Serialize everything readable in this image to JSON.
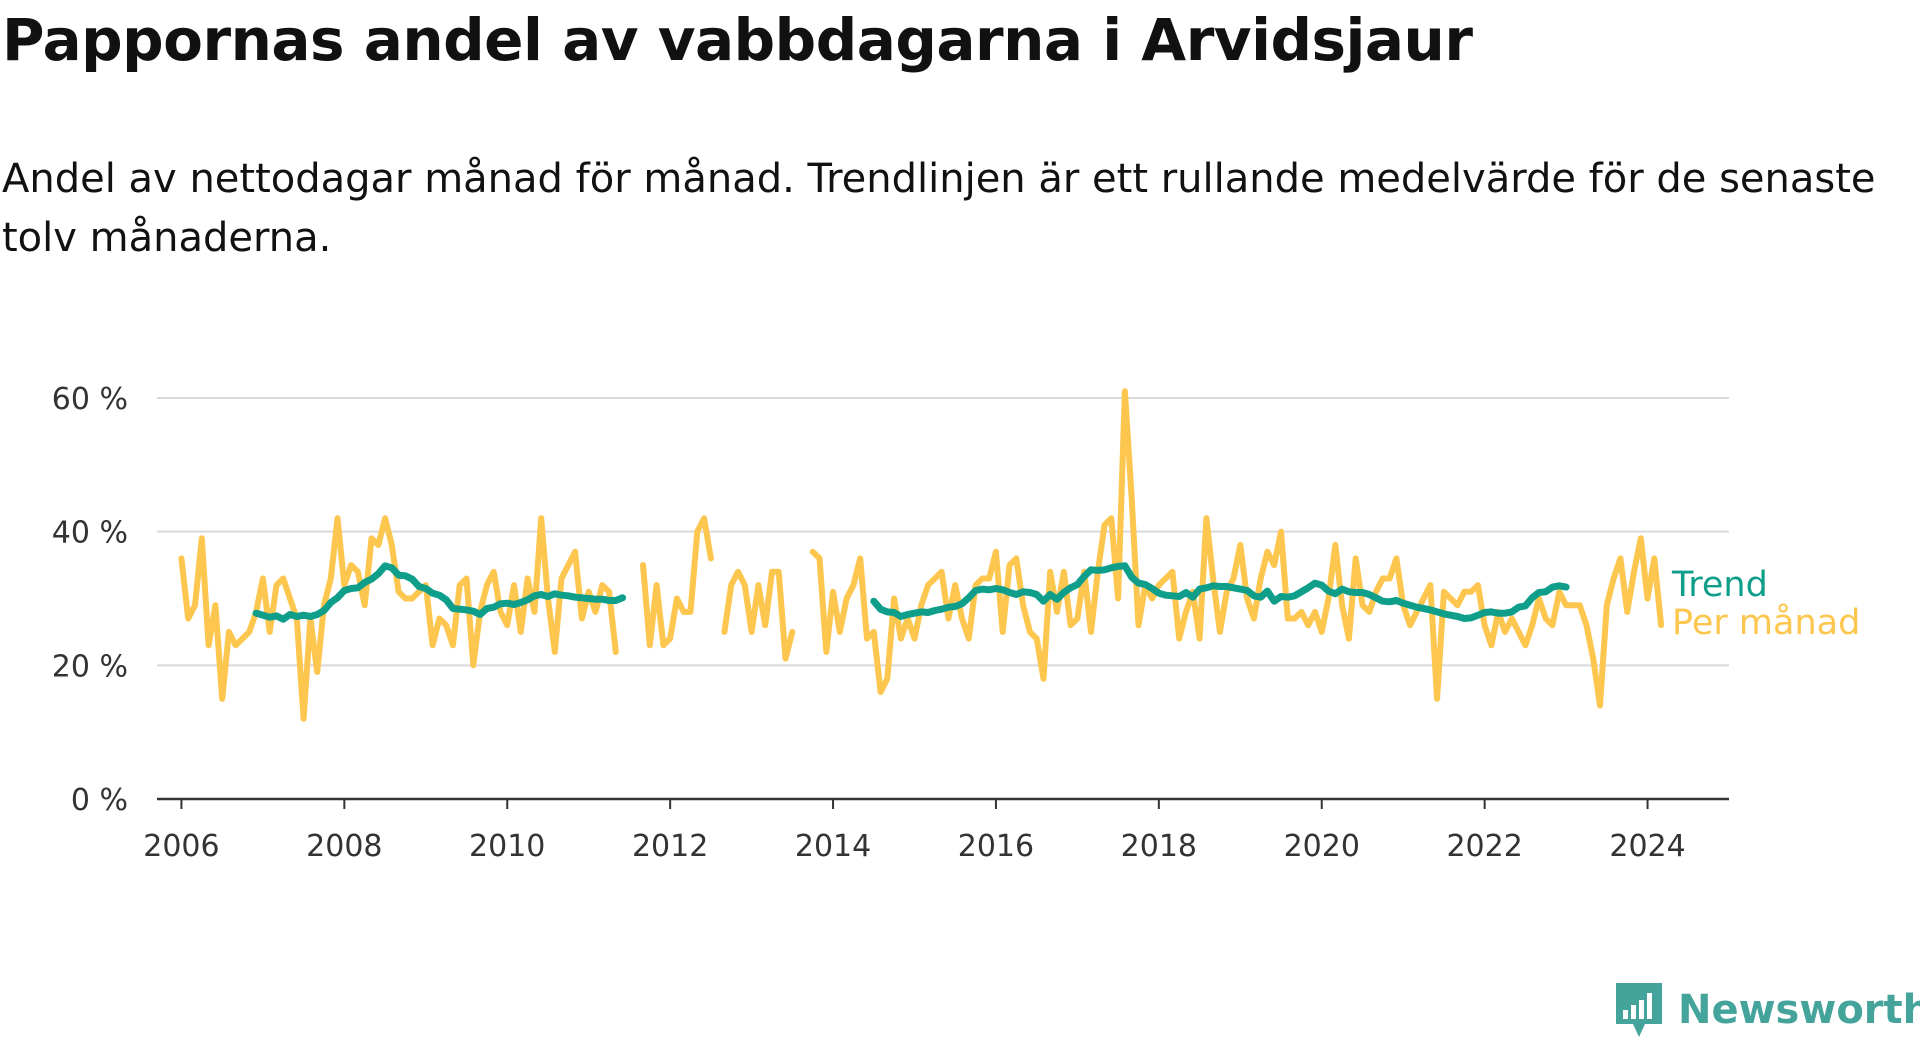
{
  "title": "Pappornas andel av vabbdagarna i Arvidsjaur",
  "subtitle": "Andel av nettodagar månad för månad. Trendlinjen är ett rullande medelvärde för de senaste tolv månaderna.",
  "brand": {
    "name": "Newsworthy",
    "icon": "newsworthy-logo-icon"
  },
  "colors": {
    "trend": "#0e9e8a",
    "monthly": "#fdc64f",
    "grid": "#d9d9d9",
    "axis": "#333333"
  },
  "chart_data": {
    "type": "line",
    "title": "Pappornas andel av vabbdagarna i Arvidsjaur",
    "xlabel": "",
    "ylabel": "",
    "xlim": [
      2005.7,
      2025.0
    ],
    "ylim": [
      0,
      60
    ],
    "x_ticks": [
      2006,
      2008,
      2010,
      2012,
      2014,
      2016,
      2018,
      2020,
      2022,
      2024
    ],
    "x_tick_labels": [
      "2006",
      "2008",
      "2010",
      "2012",
      "2014",
      "2016",
      "2018",
      "2020",
      "2022",
      "2024"
    ],
    "y_ticks": [
      0,
      20,
      40,
      60
    ],
    "y_tick_labels": [
      "0 %",
      "20 %",
      "40 %",
      "60 %"
    ],
    "grid": true,
    "legend": "direct labels at line ends",
    "series": [
      {
        "name": "Per månad",
        "segments": [
          {
            "start": "2006-01",
            "values": [
              36,
              27,
              29,
              39,
              23,
              29,
              15,
              25,
              23,
              24,
              25,
              28,
              33,
              25,
              32,
              33,
              30,
              27,
              12,
              27,
              19,
              29,
              33,
              42,
              32,
              35,
              34,
              29,
              39,
              38,
              42,
              38,
              31,
              30,
              30,
              31,
              32,
              23,
              27,
              26,
              23,
              32,
              33,
              20,
              28,
              32,
              34,
              28,
              26,
              32,
              25,
              33,
              28,
              42,
              30,
              22,
              33,
              35,
              37,
              27,
              31,
              28,
              32,
              31,
              22
            ]
          },
          {
            "start": "2011-09",
            "values": [
              35,
              23,
              32,
              23,
              24,
              30,
              28,
              28,
              40,
              42,
              36
            ]
          },
          {
            "start": "2012-09",
            "values": [
              25,
              32,
              34,
              32,
              25,
              32,
              26,
              34,
              34,
              21,
              25
            ]
          },
          {
            "start": "2013-10",
            "values": [
              37,
              36,
              22,
              31,
              25,
              30,
              32,
              36,
              24,
              25,
              16,
              18,
              30,
              24,
              27,
              24,
              29,
              32,
              33,
              34,
              27,
              32,
              27,
              24,
              32,
              33,
              33,
              37,
              25,
              35,
              36,
              29,
              25,
              24,
              18,
              34,
              28,
              34,
              26,
              27,
              34,
              25,
              34,
              41,
              42,
              30,
              61,
              45,
              26,
              32,
              30,
              32,
              33,
              34,
              24,
              28,
              31,
              24,
              42,
              33,
              25,
              31,
              33,
              38,
              30,
              27,
              33,
              37,
              35,
              40,
              27,
              27,
              28,
              26,
              28,
              25,
              30,
              38,
              29,
              24,
              36,
              29,
              28,
              31,
              33,
              33,
              36,
              29,
              26,
              28,
              30,
              32,
              15,
              31,
              30,
              29,
              31,
              31,
              32,
              26,
              23,
              28,
              25,
              27,
              25,
              23,
              26,
              30,
              27,
              26,
              31,
              29,
              29,
              29,
              26,
              21,
              14,
              29,
              33,
              36,
              28,
              34,
              39,
              30,
              36,
              26
            ]
          }
        ]
      },
      {
        "name": "Trend",
        "segments": [
          {
            "start": "2006-12",
            "values": [
              27.8,
              27.5,
              27.2,
              27.4,
              26.9,
              27.6,
              27.3,
              27.5,
              27.3,
              27.6,
              28.2,
              29.4,
              30.1,
              31.2,
              31.5,
              31.6,
              32.4,
              32.9,
              33.7,
              34.9,
              34.6,
              33.5,
              33.4,
              32.9,
              31.8,
              31.5,
              30.8,
              30.5,
              29.8,
              28.5,
              28.4,
              28.3,
              28.1,
              27.6,
              28.5,
              28.7,
              29.2,
              29.3,
              29.1,
              29.4,
              29.8,
              30.4,
              30.6,
              30.3,
              30.7,
              30.5,
              30.4,
              30.2,
              30.1,
              30.0,
              29.9,
              29.9,
              29.7,
              29.7,
              30.1
            ]
          },
          {
            "start": "2014-07",
            "values": [
              29.6,
              28.4,
              28.0,
              27.9,
              27.3,
              27.6,
              27.8,
              28.0,
              27.9,
              28.2,
              28.4,
              28.7,
              28.8,
              29.2,
              30.1,
              31.2,
              31.4,
              31.3,
              31.5,
              31.3,
              30.9,
              30.6,
              31.0,
              30.9,
              30.6,
              29.6,
              30.6,
              29.9,
              30.9,
              31.6,
              32.1,
              33.3,
              34.3,
              34.2,
              34.3,
              34.6,
              34.8,
              34.9,
              33.2,
              32.3,
              32.1,
              31.5,
              30.8,
              30.5,
              30.4,
              30.3,
              30.9,
              30.2,
              31.4,
              31.6,
              31.9,
              31.8,
              31.8,
              31.6,
              31.4,
              31.2,
              30.4,
              30.2,
              31.1,
              29.6,
              30.3,
              30.2,
              30.4,
              31.0,
              31.6,
              32.3,
              32.0,
              31.1,
              30.7,
              31.4,
              31.0,
              30.9,
              30.9,
              30.6,
              30.1,
              29.6,
              29.5,
              29.7,
              29.3,
              29.0,
              28.7,
              28.5,
              28.3,
              28.0,
              27.7,
              27.5,
              27.3,
              27.0,
              27.1,
              27.5,
              27.9,
              28.0,
              27.8,
              27.8,
              28.0,
              28.7,
              28.9,
              30.1,
              30.9,
              31.0,
              31.7,
              31.9,
              31.7
            ]
          }
        ]
      }
    ]
  }
}
